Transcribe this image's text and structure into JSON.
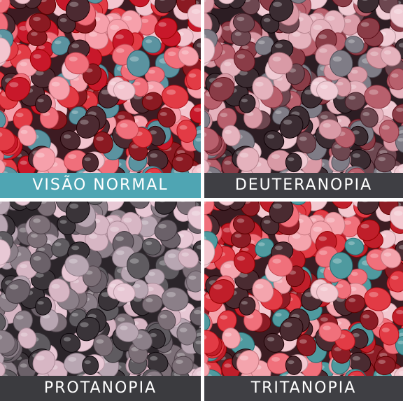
{
  "panels": [
    {
      "id": "normal",
      "caption": "VISÃO NORMAL",
      "caption_bg": "#4fa5b3",
      "palette": [
        "#e23b45",
        "#c8182a",
        "#f06f7b",
        "#5b93a0",
        "#4c2a31",
        "#f3c5cf",
        "#f6a0ab",
        "#8b1a22"
      ]
    },
    {
      "id": "deuteranopia",
      "caption": "DEUTERANOPIA",
      "caption_bg": "#3f3f44",
      "palette": [
        "#b8606d",
        "#8a3c47",
        "#d99aa6",
        "#7f7c86",
        "#3b2c32",
        "#f0cbd4",
        "#e5b2bd",
        "#6d4750"
      ]
    },
    {
      "id": "protanopia",
      "caption": "PROTANOPIA",
      "caption_bg": "#3b3b3f",
      "palette": [
        "#8b7f88",
        "#6b6169",
        "#b8a6b2",
        "#5f5b60",
        "#3a3439",
        "#e8c8d5",
        "#d7b6c4",
        "#7c6f77"
      ]
    },
    {
      "id": "tritanopia",
      "caption": "TRITANOPIA",
      "caption_bg": "#3f3f44",
      "palette": [
        "#e23b45",
        "#c01e2a",
        "#f0707b",
        "#4f9a9f",
        "#4a2b31",
        "#f3c8d0",
        "#f4a4ad",
        "#8c1c25"
      ]
    }
  ]
}
